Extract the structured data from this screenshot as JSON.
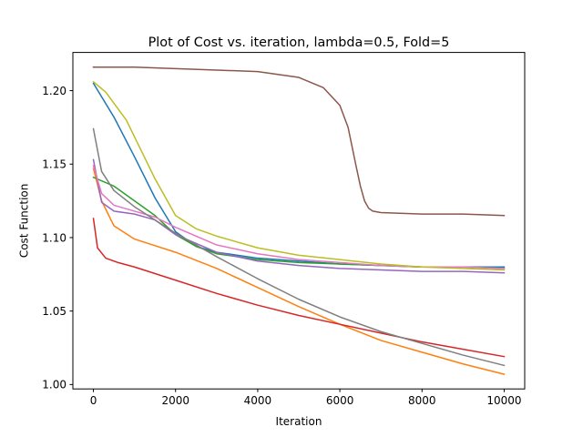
{
  "chart_data": {
    "type": "line",
    "title": "Plot of Cost vs. iteration, lambda=0.5, Fold=5",
    "xlabel": "Iteration",
    "ylabel": "Cost Function",
    "xlim": [
      -500,
      10500
    ],
    "ylim": [
      0.997,
      1.226
    ],
    "xticks": [
      0,
      2000,
      4000,
      6000,
      8000,
      10000
    ],
    "xtick_labels": [
      "0",
      "2000",
      "4000",
      "6000",
      "8000",
      "10000"
    ],
    "yticks": [
      1.0,
      1.05,
      1.1,
      1.15,
      1.2
    ],
    "ytick_labels": [
      "1.00",
      "1.05",
      "1.10",
      "1.15",
      "1.20"
    ],
    "grid": false,
    "series": [
      {
        "color": "#1f77b4",
        "x": [
          0,
          500,
          1000,
          1500,
          2000,
          2500,
          3000,
          4000,
          5000,
          6000,
          7000,
          8000,
          9000,
          10000
        ],
        "values": [
          1.205,
          1.182,
          1.155,
          1.127,
          1.104,
          1.094,
          1.09,
          1.086,
          1.084,
          1.082,
          1.081,
          1.08,
          1.08,
          1.08
        ]
      },
      {
        "color": "#ff7f0e",
        "x": [
          0,
          200,
          500,
          1000,
          2000,
          3000,
          4000,
          5000,
          6000,
          7000,
          8000,
          9000,
          10000
        ],
        "values": [
          1.147,
          1.125,
          1.108,
          1.099,
          1.09,
          1.079,
          1.066,
          1.053,
          1.041,
          1.03,
          1.022,
          1.014,
          1.007
        ]
      },
      {
        "color": "#2ca02c",
        "x": [
          0,
          500,
          1000,
          1500,
          2000,
          2500,
          3000,
          4000,
          5000,
          6000,
          7000,
          8000,
          9000,
          10000
        ],
        "values": [
          1.141,
          1.135,
          1.125,
          1.115,
          1.102,
          1.094,
          1.089,
          1.085,
          1.083,
          1.082,
          1.081,
          1.08,
          1.08,
          1.079
        ]
      },
      {
        "color": "#d62728",
        "x": [
          0,
          100,
          300,
          600,
          1000,
          2000,
          3000,
          4000,
          5000,
          6000,
          7000,
          8000,
          9000,
          10000
        ],
        "values": [
          1.113,
          1.093,
          1.086,
          1.083,
          1.08,
          1.071,
          1.062,
          1.054,
          1.047,
          1.041,
          1.035,
          1.029,
          1.024,
          1.019
        ]
      },
      {
        "color": "#9467bd",
        "x": [
          0,
          200,
          500,
          1000,
          1500,
          2000,
          3000,
          4000,
          5000,
          6000,
          7000,
          8000,
          9000,
          10000
        ],
        "values": [
          1.153,
          1.124,
          1.118,
          1.116,
          1.112,
          1.102,
          1.09,
          1.084,
          1.081,
          1.079,
          1.078,
          1.077,
          1.077,
          1.076
        ]
      },
      {
        "color": "#8c564b",
        "x": [
          0,
          1000,
          2000,
          3000,
          4000,
          5000,
          5600,
          6000,
          6200,
          6400,
          6500,
          6600,
          6700,
          6800,
          7000,
          8000,
          9000,
          10000
        ],
        "values": [
          1.216,
          1.216,
          1.215,
          1.214,
          1.213,
          1.209,
          1.202,
          1.19,
          1.175,
          1.148,
          1.135,
          1.125,
          1.12,
          1.118,
          1.117,
          1.116,
          1.116,
          1.115
        ]
      },
      {
        "color": "#e377c2",
        "x": [
          0,
          200,
          500,
          1000,
          1500,
          2000,
          3000,
          4000,
          5000,
          6000,
          7000,
          8000,
          9000,
          10000
        ],
        "values": [
          1.149,
          1.13,
          1.122,
          1.118,
          1.114,
          1.107,
          1.095,
          1.089,
          1.085,
          1.083,
          1.081,
          1.08,
          1.08,
          1.079
        ]
      },
      {
        "color": "#7f7f7f",
        "x": [
          0,
          200,
          500,
          1000,
          1500,
          2000,
          3000,
          4000,
          5000,
          6000,
          7000,
          8000,
          9000,
          10000
        ],
        "values": [
          1.174,
          1.145,
          1.132,
          1.121,
          1.112,
          1.103,
          1.087,
          1.072,
          1.058,
          1.046,
          1.036,
          1.028,
          1.02,
          1.013
        ]
      },
      {
        "color": "#bcbd22",
        "x": [
          0,
          300,
          800,
          1500,
          2000,
          2500,
          3000,
          4000,
          5000,
          6000,
          7000,
          8000,
          9000,
          10000
        ],
        "values": [
          1.206,
          1.199,
          1.18,
          1.14,
          1.115,
          1.106,
          1.101,
          1.093,
          1.088,
          1.085,
          1.082,
          1.08,
          1.079,
          1.078
        ]
      }
    ]
  }
}
